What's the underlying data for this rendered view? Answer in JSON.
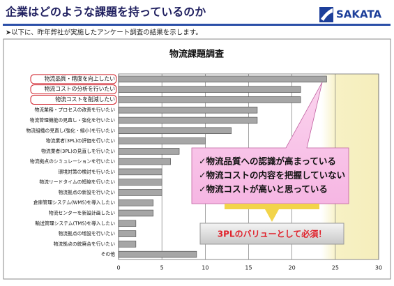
{
  "header": {
    "title": "企業はどのような課題を持っているのか",
    "logo": "SAKATA",
    "intro": "➤以下に、昨年弊社が実施したアンケート調査の結果を示します。"
  },
  "chart_data": {
    "type": "bar",
    "orientation": "horizontal",
    "title": "物流課題調査",
    "categories": [
      "物流品質・精度を向上したい",
      "物流コストの分析を行いたい",
      "物流コストを削減したい",
      "物流業務・プロセスの改善を行いたい",
      "物流管理機能の見直し・強化を行いたい",
      "物流組織の見直し(強化・縮小)を行いたい",
      "物流業者(3PL)の評価を行いたい",
      "物流業者(3PL)の見直しを行いたい",
      "物流拠点のシミュレーションを行いたい",
      "環境対策の検討を行いたい",
      "物流リードタイムの短縮を行いたい",
      "物流拠点の新設を行いたい",
      "倉庫管理システム(WMS)を導入したい",
      "物流センターを新設計画したい",
      "輸送管理システム(TMS)を導入したい",
      "物流拠点の増設を行いたい",
      "物流拠点の統廃合を行いたい",
      "その他"
    ],
    "values": [
      24,
      21,
      21,
      16,
      16,
      13,
      10,
      7,
      6,
      5,
      5,
      5,
      4,
      4,
      2,
      2,
      2,
      9
    ],
    "color": "#a6a6a6",
    "xlim": [
      0,
      30
    ],
    "xticks": [
      0,
      5,
      10,
      15,
      20,
      25,
      30
    ],
    "grid": true
  },
  "callout": {
    "points": [
      "✓物流品質への認識が高まっている",
      "✓物流コストの内容を把握していない",
      "✓物流コストが高いと思っている"
    ],
    "conclusion": "3PLのバリューとして必須！"
  }
}
